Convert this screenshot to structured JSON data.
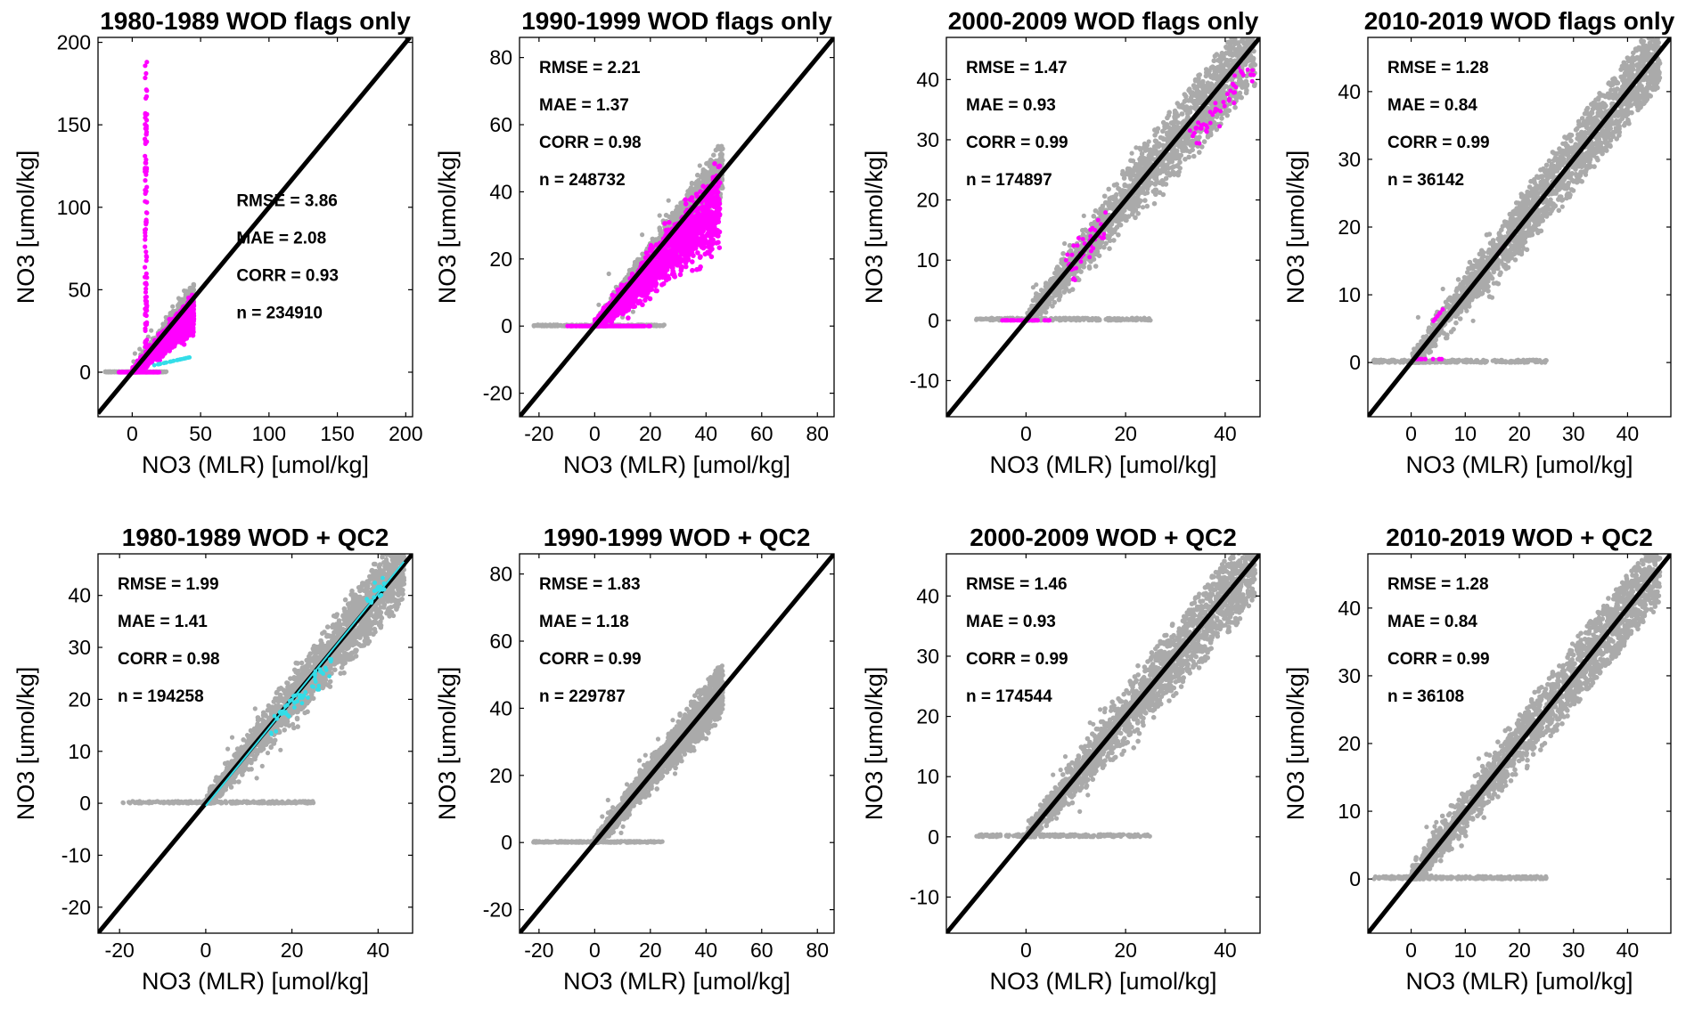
{
  "colors": {
    "unflagged": "#aaaaaa",
    "wod_flagged": "#ff00ff",
    "qc2_flagged": "#33dde8",
    "one_to_one": "#000000",
    "axes": "#000000"
  },
  "chart_data": [
    {
      "id": "p1",
      "type": "scatter",
      "title": "1980-1989 WOD flags only",
      "xlabel": "NO3 (MLR) [umol/kg]",
      "ylabel": "NO3 [umol/kg]",
      "xlim": [
        -25,
        205
      ],
      "ylim": [
        -27,
        203
      ],
      "xticks": [
        0,
        50,
        100,
        150,
        200
      ],
      "yticks": [
        0,
        50,
        100,
        150,
        200
      ],
      "grid": false,
      "one_to_one_line": true,
      "stats_position": "right-middle",
      "stats": {
        "rmse": "RMSE = 3.86",
        "mae": "MAE = 2.08",
        "corr": "CORR = 0.93",
        "n": "n = 234910"
      },
      "cloud": {
        "max": 45,
        "above": 12,
        "below": 10,
        "floor_from": -20
      },
      "flagged": {
        "spike_x": 10,
        "spike_ymax": 190,
        "max": 45
      },
      "qc2": {
        "x": [
          15,
          42
        ],
        "y": [
          4,
          9
        ]
      }
    },
    {
      "id": "p2",
      "type": "scatter",
      "title": "1990-1999 WOD flags only",
      "xlabel": "NO3 (MLR) [umol/kg]",
      "ylabel": "NO3 [umol/kg]",
      "xlim": [
        -27,
        86
      ],
      "ylim": [
        -27,
        86
      ],
      "xticks": [
        -20,
        0,
        20,
        40,
        60,
        80
      ],
      "yticks": [
        -20,
        0,
        20,
        40,
        60,
        80
      ],
      "grid": false,
      "one_to_one_line": true,
      "stats_position": "top-left",
      "stats": {
        "rmse": "RMSE = 2.21",
        "mae": "MAE = 1.37",
        "corr": "CORR = 0.98",
        "n": "n = 248732"
      },
      "cloud": {
        "max": 46,
        "above": 10,
        "below": 10,
        "floor_from": -22
      },
      "flagged": {
        "max": 45
      }
    },
    {
      "id": "p3",
      "type": "scatter",
      "title": "2000-2009 WOD flags only",
      "xlabel": "NO3 (MLR) [umol/kg]",
      "ylabel": "NO3 [umol/kg]",
      "xlim": [
        -16,
        47
      ],
      "ylim": [
        -16,
        47
      ],
      "xticks": [
        0,
        20,
        40
      ],
      "yticks": [
        -10,
        0,
        10,
        20,
        30,
        40
      ],
      "grid": false,
      "one_to_one_line": true,
      "stats_position": "top-left",
      "stats": {
        "rmse": "RMSE = 1.47",
        "mae": "MAE = 0.93",
        "corr": "CORR = 0.99",
        "n": "n = 174897"
      },
      "cloud": {
        "max": 46,
        "above": 6,
        "below": 7,
        "floor_from": -10
      },
      "flagged": {
        "sparse": true
      }
    },
    {
      "id": "p4",
      "type": "scatter",
      "title": "2010-2019 WOD flags only",
      "xlabel": "NO3 (MLR) [umol/kg]",
      "ylabel": "NO3 [umol/kg]",
      "xlim": [
        -8,
        48
      ],
      "ylim": [
        -8,
        48
      ],
      "xticks": [
        0,
        10,
        20,
        30,
        40
      ],
      "yticks": [
        0,
        10,
        20,
        30,
        40
      ],
      "grid": false,
      "one_to_one_line": true,
      "stats_position": "top-left",
      "stats": {
        "rmse": "RMSE = 1.28",
        "mae": "MAE = 0.84",
        "corr": "CORR = 0.99",
        "n": "n = 36142"
      },
      "cloud": {
        "max": 46,
        "above": 5,
        "below": 5,
        "floor_from": -7
      },
      "flagged": {
        "few": true
      }
    },
    {
      "id": "p5",
      "type": "scatter",
      "title": "1980-1989 WOD + QC2",
      "xlabel": "NO3 (MLR) [umol/kg]",
      "ylabel": "NO3 [umol/kg]",
      "xlim": [
        -25,
        48
      ],
      "ylim": [
        -25,
        48
      ],
      "xticks": [
        -20,
        0,
        20,
        40
      ],
      "yticks": [
        -20,
        -10,
        0,
        10,
        20,
        30,
        40
      ],
      "grid": false,
      "one_to_one_line": true,
      "stats_position": "top-left",
      "stats": {
        "rmse": "RMSE = 1.99",
        "mae": "MAE = 1.41",
        "corr": "CORR = 0.98",
        "n": "n = 194258"
      },
      "cloud": {
        "max": 46,
        "above": 7,
        "below": 7,
        "floor_from": -20
      },
      "qc2": {
        "diag": true
      }
    },
    {
      "id": "p6",
      "type": "scatter",
      "title": "1990-1999 WOD + QC2",
      "xlabel": "NO3 (MLR) [umol/kg]",
      "ylabel": "NO3 [umol/kg]",
      "xlim": [
        -27,
        86
      ],
      "ylim": [
        -27,
        86
      ],
      "xticks": [
        -20,
        0,
        20,
        40,
        60,
        80
      ],
      "yticks": [
        -20,
        0,
        20,
        40,
        60,
        80
      ],
      "grid": false,
      "one_to_one_line": true,
      "stats_position": "top-left",
      "stats": {
        "rmse": "RMSE = 1.83",
        "mae": "MAE = 1.18",
        "corr": "CORR = 0.99",
        "n": "n = 229787"
      },
      "cloud": {
        "max": 46,
        "above": 8,
        "below": 10,
        "floor_from": -22
      }
    },
    {
      "id": "p7",
      "type": "scatter",
      "title": "2000-2009 WOD + QC2",
      "xlabel": "NO3 (MLR) [umol/kg]",
      "ylabel": "NO3 [umol/kg]",
      "xlim": [
        -16,
        47
      ],
      "ylim": [
        -16,
        47
      ],
      "xticks": [
        0,
        20,
        40
      ],
      "yticks": [
        -10,
        0,
        10,
        20,
        30,
        40
      ],
      "grid": false,
      "one_to_one_line": true,
      "stats_position": "top-left",
      "stats": {
        "rmse": "RMSE = 1.46",
        "mae": "MAE = 0.93",
        "corr": "CORR = 0.99",
        "n": "n = 174544"
      },
      "cloud": {
        "max": 46,
        "above": 6,
        "below": 7,
        "floor_from": -10
      }
    },
    {
      "id": "p8",
      "type": "scatter",
      "title": "2010-2019 WOD + QC2",
      "xlabel": "NO3 (MLR) [umol/kg]",
      "ylabel": "NO3 [umol/kg]",
      "xlim": [
        -8,
        48
      ],
      "ylim": [
        -8,
        48
      ],
      "xticks": [
        0,
        10,
        20,
        30,
        40
      ],
      "yticks": [
        0,
        10,
        20,
        30,
        40
      ],
      "grid": false,
      "one_to_one_line": true,
      "stats_position": "top-left",
      "stats": {
        "rmse": "RMSE = 1.28",
        "mae": "MAE = 0.84",
        "corr": "CORR = 0.99",
        "n": "n = 36108"
      },
      "cloud": {
        "max": 46,
        "above": 5,
        "below": 5,
        "floor_from": -7
      }
    }
  ]
}
